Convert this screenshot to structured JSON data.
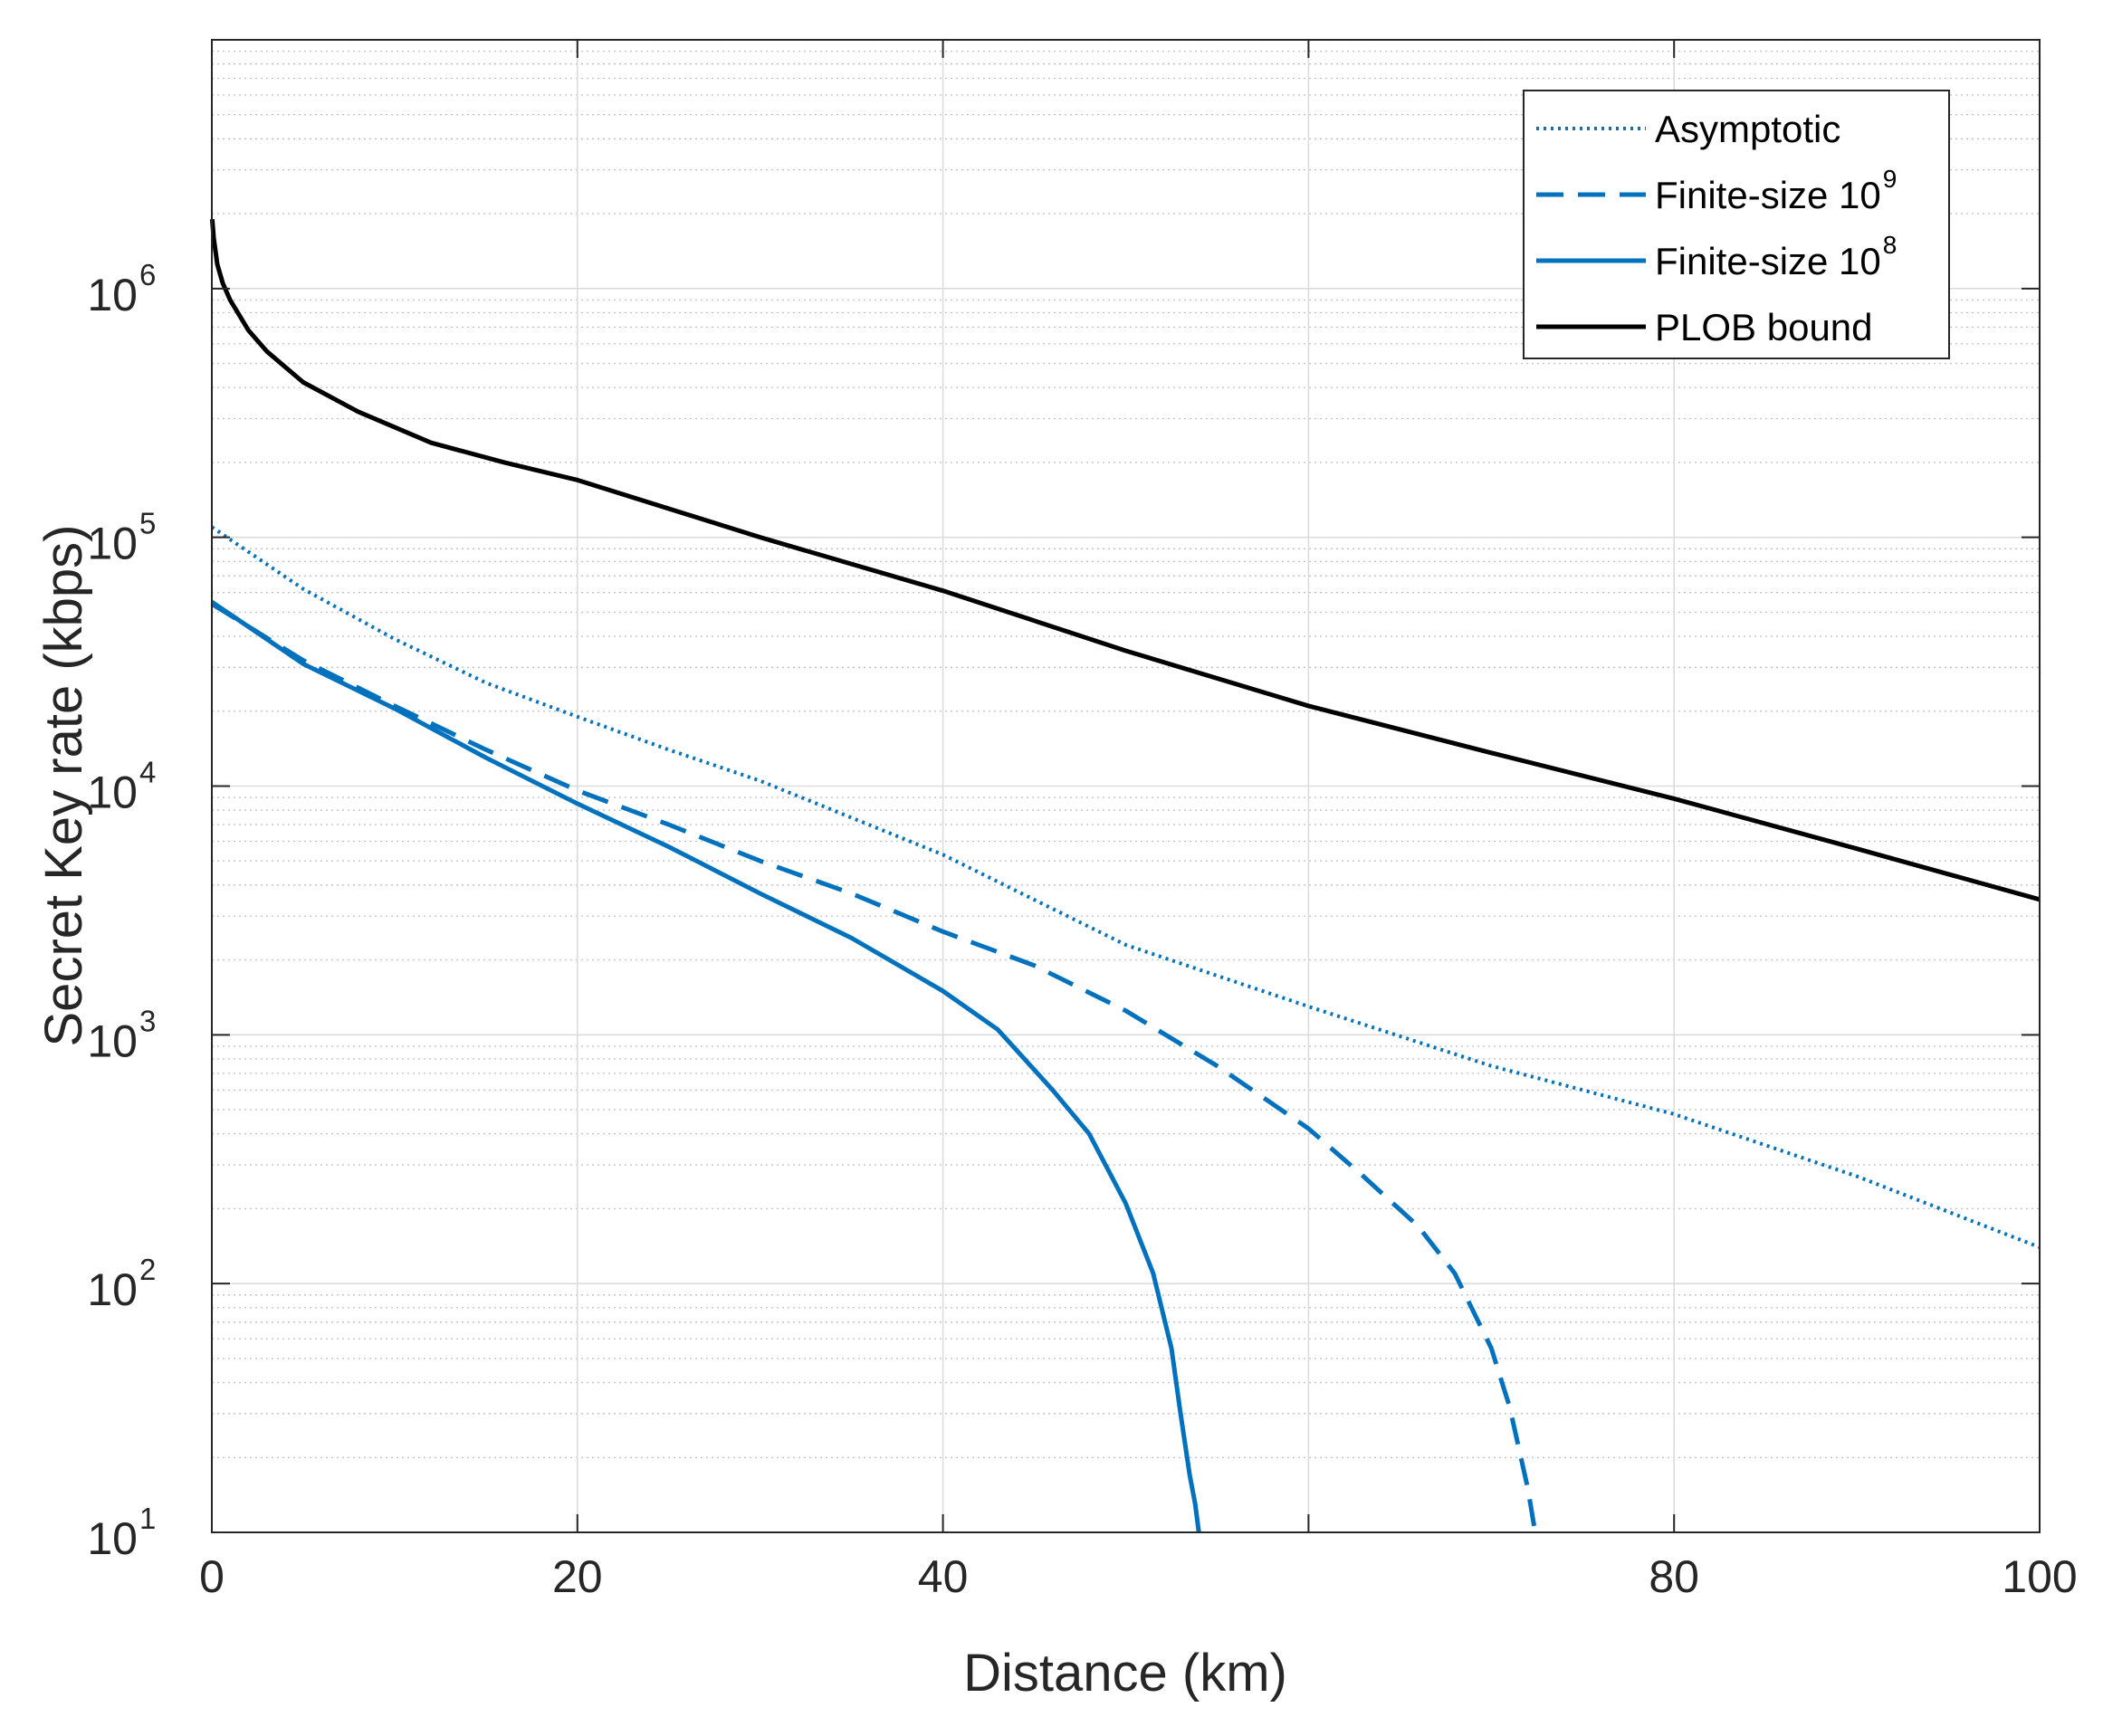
{
  "chart_data": {
    "type": "line",
    "xlabel": "Distance (km)",
    "ylabel": "Secret Key rate (kbps)",
    "xlim": [
      0,
      100
    ],
    "ylim": [
      10,
      10000000
    ],
    "yscale": "log",
    "grid": true,
    "legend_position": "top-right",
    "x_ticks": [
      {
        "value": 0,
        "label": "0"
      },
      {
        "value": 20,
        "label": "20"
      },
      {
        "value": 40,
        "label": "40"
      },
      {
        "value": 80,
        "label": "80"
      },
      {
        "value": 100,
        "label": "100"
      }
    ],
    "x_grid": [
      0,
      20,
      40,
      60,
      80,
      100
    ],
    "y_ticks": [
      {
        "value": 10,
        "base": "10",
        "exp": "1"
      },
      {
        "value": 100,
        "base": "10",
        "exp": "2"
      },
      {
        "value": 1000,
        "base": "10",
        "exp": "3"
      },
      {
        "value": 10000,
        "base": "10",
        "exp": "4"
      },
      {
        "value": 100000,
        "base": "10",
        "exp": "5"
      },
      {
        "value": 1000000,
        "base": "10",
        "exp": "6"
      }
    ],
    "series": [
      {
        "name": "Asymptotic",
        "legend_label": "Asymptotic",
        "legend_sup": "",
        "color": "#0072BD",
        "style": "dotted",
        "x": [
          0,
          5,
          10,
          15,
          20,
          25,
          30,
          40,
          50,
          60,
          70,
          80,
          90,
          100
        ],
        "y": [
          110000,
          62000,
          39000,
          26000,
          19000,
          14000,
          10500,
          5300,
          2300,
          1300,
          750,
          480,
          270,
          140
        ]
      },
      {
        "name": "Finite-size 10^9",
        "legend_label": "Finite-size 10",
        "legend_sup": "9",
        "color": "#0072BD",
        "style": "dashed",
        "x": [
          0,
          5,
          10,
          15,
          20,
          25,
          30,
          35,
          40,
          45,
          50,
          55,
          60,
          63,
          66,
          68,
          70,
          71,
          72,
          72.4
        ],
        "y": [
          54000,
          32000,
          21000,
          14000,
          9600,
          7000,
          5000,
          3700,
          2600,
          1900,
          1250,
          750,
          420,
          270,
          170,
          110,
          55,
          32,
          15,
          10
        ]
      },
      {
        "name": "Finite-size 10^8",
        "legend_label": "Finite-size 10",
        "legend_sup": "8",
        "color": "#0072BD",
        "style": "solid",
        "x": [
          0,
          5,
          10,
          15,
          20,
          25,
          30,
          35,
          40,
          43,
          46,
          48,
          50,
          51.5,
          52.5,
          53,
          53.5,
          53.8,
          54
        ],
        "y": [
          55000,
          31000,
          20500,
          13000,
          8500,
          5700,
          3700,
          2450,
          1500,
          1050,
          600,
          400,
          210,
          110,
          55,
          30,
          17,
          13,
          10
        ]
      },
      {
        "name": "PLOB bound",
        "legend_label": "PLOB bound",
        "legend_sup": "",
        "color": "#000000",
        "style": "solid",
        "x": [
          0.02,
          0.1,
          0.3,
          0.6,
          1,
          2,
          3,
          5,
          8,
          12,
          16,
          20,
          30,
          40,
          50,
          60,
          70,
          80,
          90,
          100
        ],
        "y": [
          1900000,
          1600000,
          1250000,
          1050000,
          900000,
          680000,
          560000,
          420000,
          320000,
          240000,
          200000,
          170000,
          100000,
          61000,
          35000,
          21000,
          13600,
          8900,
          5600,
          3500
        ]
      }
    ]
  }
}
